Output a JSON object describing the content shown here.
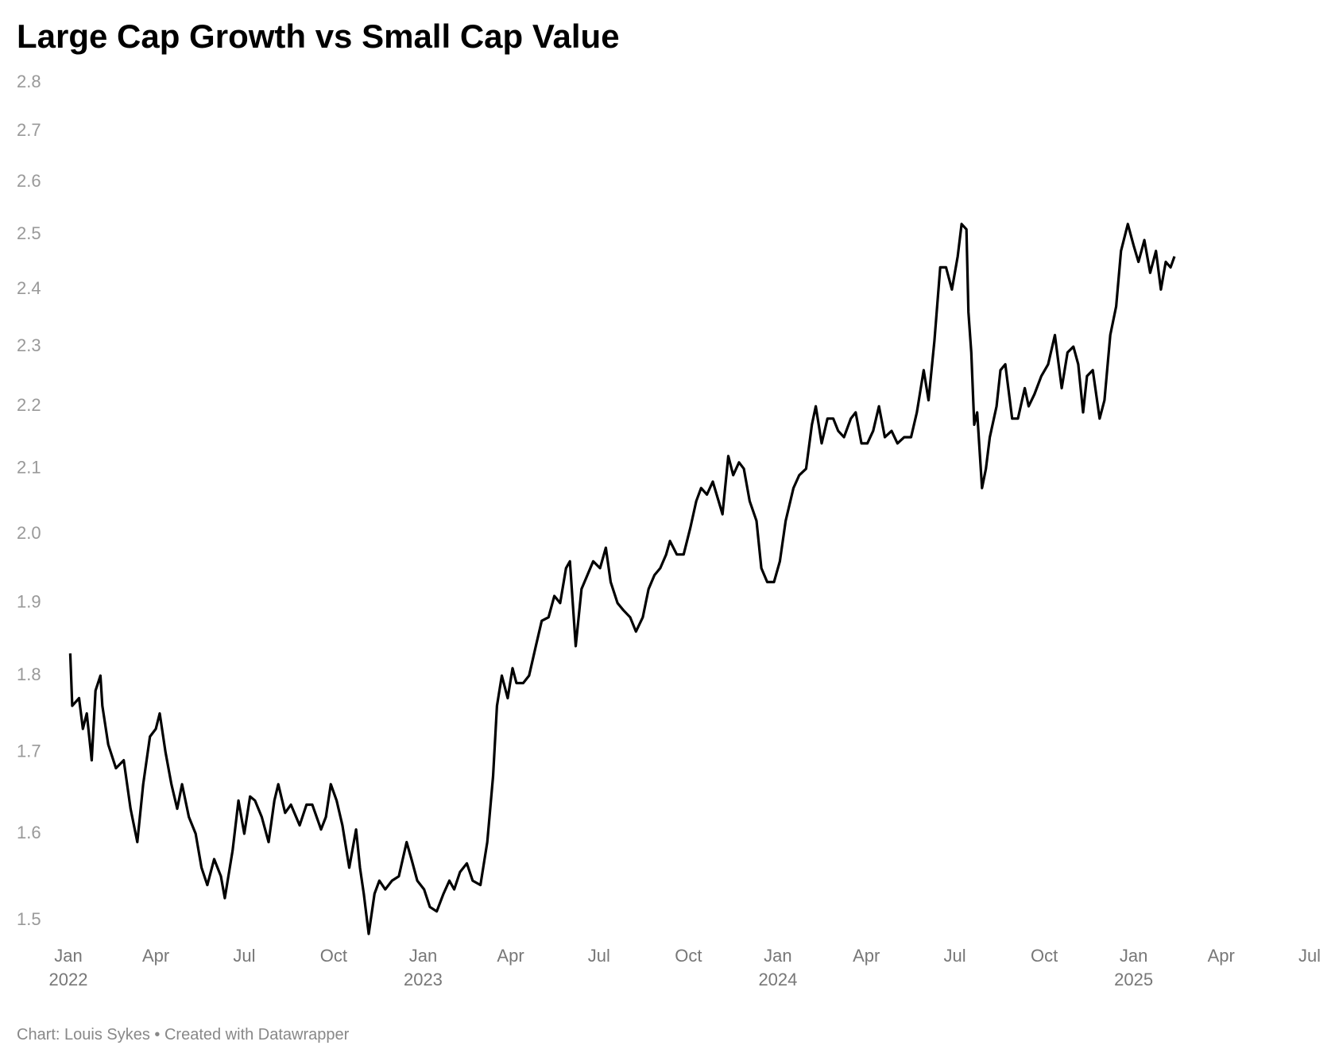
{
  "chart_data": {
    "type": "line",
    "title": "Large Cap Growth vs Small Cap Value",
    "footer": "Chart: Louis Sykes • Created with Datawrapper",
    "color": "#000000",
    "log_scale": true,
    "grid": false,
    "xlim": [
      "2022-01-01",
      "2025-07-01"
    ],
    "xticks": [
      {
        "value": "2022-01-01",
        "label": "Jan 2022"
      },
      {
        "value": "2022-04-01",
        "label": "Apr"
      },
      {
        "value": "2022-07-01",
        "label": "Jul"
      },
      {
        "value": "2022-10-01",
        "label": "Oct"
      },
      {
        "value": "2023-01-01",
        "label": "Jan 2023"
      },
      {
        "value": "2023-04-01",
        "label": "Apr"
      },
      {
        "value": "2023-07-01",
        "label": "Jul"
      },
      {
        "value": "2023-10-01",
        "label": "Oct"
      },
      {
        "value": "2024-01-01",
        "label": "Jan 2024"
      },
      {
        "value": "2024-04-01",
        "label": "Apr"
      },
      {
        "value": "2024-07-01",
        "label": "Jul"
      },
      {
        "value": "2024-10-01",
        "label": "Oct"
      },
      {
        "value": "2025-01-01",
        "label": "Jan 2025"
      },
      {
        "value": "2025-04-01",
        "label": "Apr"
      },
      {
        "value": "2025-07-01",
        "label": "Jul"
      }
    ],
    "ylim": [
      1.5,
      2.8
    ],
    "yticks": [
      {
        "value": 1.5,
        "label": "1.5"
      },
      {
        "value": 1.6,
        "label": "1.6"
      },
      {
        "value": 1.7,
        "label": "1.7"
      },
      {
        "value": 1.8,
        "label": "1.8"
      },
      {
        "value": 1.9,
        "label": "1.9"
      },
      {
        "value": 2.0,
        "label": "2.0"
      },
      {
        "value": 2.1,
        "label": "2.1"
      },
      {
        "value": 2.2,
        "label": "2.2"
      },
      {
        "value": 2.3,
        "label": "2.3"
      },
      {
        "value": 2.4,
        "label": "2.4"
      },
      {
        "value": 2.5,
        "label": "2.5"
      },
      {
        "value": 2.6,
        "label": "2.6"
      },
      {
        "value": 2.7,
        "label": "2.7"
      },
      {
        "value": 2.8,
        "label": "2.8"
      }
    ],
    "x": [
      "2022-01-03",
      "2022-01-05",
      "2022-01-12",
      "2022-01-16",
      "2022-01-20",
      "2022-01-25",
      "2022-01-29",
      "2022-02-03",
      "2022-02-05",
      "2022-02-11",
      "2022-02-19",
      "2022-02-27",
      "2022-03-06",
      "2022-03-13",
      "2022-03-19",
      "2022-03-26",
      "2022-04-01",
      "2022-04-05",
      "2022-04-11",
      "2022-04-17",
      "2022-04-23",
      "2022-04-28",
      "2022-05-05",
      "2022-05-12",
      "2022-05-18",
      "2022-05-24",
      "2022-05-31",
      "2022-06-07",
      "2022-06-11",
      "2022-06-19",
      "2022-06-25",
      "2022-07-01",
      "2022-07-07",
      "2022-07-12",
      "2022-07-19",
      "2022-07-26",
      "2022-08-01",
      "2022-08-05",
      "2022-08-12",
      "2022-08-18",
      "2022-08-27",
      "2022-09-03",
      "2022-09-09",
      "2022-09-18",
      "2022-09-23",
      "2022-09-28",
      "2022-10-04",
      "2022-10-10",
      "2022-10-17",
      "2022-10-24",
      "2022-10-28",
      "2022-11-01",
      "2022-11-06",
      "2022-11-12",
      "2022-11-17",
      "2022-11-23",
      "2022-11-30",
      "2022-12-07",
      "2022-12-15",
      "2022-12-20",
      "2022-12-26",
      "2023-01-02",
      "2023-01-08",
      "2023-01-15",
      "2023-01-22",
      "2023-01-28",
      "2023-02-02",
      "2023-02-08",
      "2023-02-15",
      "2023-02-21",
      "2023-03-01",
      "2023-03-08",
      "2023-03-14",
      "2023-03-18",
      "2023-03-23",
      "2023-03-29",
      "2023-04-03",
      "2023-04-07",
      "2023-04-14",
      "2023-04-20",
      "2023-04-27",
      "2023-05-03",
      "2023-05-10",
      "2023-05-16",
      "2023-05-22",
      "2023-05-28",
      "2023-06-01",
      "2023-06-07",
      "2023-06-13",
      "2023-06-19",
      "2023-06-25",
      "2023-07-02",
      "2023-07-08",
      "2023-07-13",
      "2023-07-20",
      "2023-07-26",
      "2023-08-02",
      "2023-08-08",
      "2023-08-15",
      "2023-08-21",
      "2023-08-27",
      "2023-09-02",
      "2023-09-08",
      "2023-09-12",
      "2023-09-19",
      "2023-09-26",
      "2023-10-03",
      "2023-10-09",
      "2023-10-14",
      "2023-10-20",
      "2023-10-26",
      "2023-11-01",
      "2023-11-05",
      "2023-11-11",
      "2023-11-16",
      "2023-11-22",
      "2023-11-27",
      "2023-12-03",
      "2023-12-10",
      "2023-12-15",
      "2023-12-21",
      "2023-12-28",
      "2024-01-03",
      "2024-01-09",
      "2024-01-17",
      "2024-01-23",
      "2024-01-30",
      "2024-02-05",
      "2024-02-09",
      "2024-02-15",
      "2024-02-21",
      "2024-02-27",
      "2024-03-03",
      "2024-03-09",
      "2024-03-16",
      "2024-03-21",
      "2024-03-27",
      "2024-04-02",
      "2024-04-08",
      "2024-04-14",
      "2024-04-20",
      "2024-04-27",
      "2024-05-03",
      "2024-05-10",
      "2024-05-17",
      "2024-05-23",
      "2024-05-30",
      "2024-06-04",
      "2024-06-10",
      "2024-06-16",
      "2024-06-22",
      "2024-06-28",
      "2024-07-04",
      "2024-07-08",
      "2024-07-13",
      "2024-07-15",
      "2024-07-18",
      "2024-07-21",
      "2024-07-24",
      "2024-07-29",
      "2024-08-02",
      "2024-08-06",
      "2024-08-13",
      "2024-08-17",
      "2024-08-22",
      "2024-08-29",
      "2024-09-04",
      "2024-09-11",
      "2024-09-15",
      "2024-09-21",
      "2024-09-28",
      "2024-10-05",
      "2024-10-12",
      "2024-10-19",
      "2024-10-25",
      "2024-10-31",
      "2024-11-05",
      "2024-11-10",
      "2024-11-14",
      "2024-11-20",
      "2024-11-27",
      "2024-12-02",
      "2024-12-08",
      "2024-12-14",
      "2024-12-19",
      "2024-12-26",
      "2025-01-01",
      "2025-01-06",
      "2025-01-12",
      "2025-01-18",
      "2025-01-24",
      "2025-01-29",
      "2025-02-03",
      "2025-02-08",
      "2025-02-12"
    ],
    "values": [
      1.83,
      1.76,
      1.77,
      1.73,
      1.75,
      1.69,
      1.78,
      1.8,
      1.76,
      1.71,
      1.68,
      1.69,
      1.63,
      1.59,
      1.66,
      1.72,
      1.73,
      1.75,
      1.7,
      1.66,
      1.63,
      1.66,
      1.62,
      1.6,
      1.56,
      1.54,
      1.57,
      1.55,
      1.525,
      1.58,
      1.64,
      1.6,
      1.645,
      1.64,
      1.62,
      1.59,
      1.64,
      1.66,
      1.625,
      1.635,
      1.61,
      1.635,
      1.635,
      1.605,
      1.62,
      1.66,
      1.64,
      1.61,
      1.56,
      1.605,
      1.56,
      1.53,
      1.485,
      1.53,
      1.545,
      1.535,
      1.545,
      1.55,
      1.59,
      1.57,
      1.545,
      1.535,
      1.515,
      1.51,
      1.53,
      1.545,
      1.535,
      1.555,
      1.565,
      1.545,
      1.54,
      1.59,
      1.67,
      1.76,
      1.8,
      1.77,
      1.81,
      1.79,
      1.79,
      1.8,
      1.84,
      1.875,
      1.88,
      1.91,
      1.9,
      1.95,
      1.96,
      1.84,
      1.92,
      1.94,
      1.96,
      1.95,
      1.98,
      1.93,
      1.9,
      1.89,
      1.88,
      1.86,
      1.88,
      1.92,
      1.94,
      1.95,
      1.97,
      1.99,
      1.97,
      1.97,
      2.01,
      2.05,
      2.07,
      2.06,
      2.08,
      2.05,
      2.03,
      2.12,
      2.09,
      2.11,
      2.1,
      2.05,
      2.02,
      1.95,
      1.93,
      1.93,
      1.96,
      2.02,
      2.07,
      2.09,
      2.1,
      2.17,
      2.2,
      2.14,
      2.18,
      2.18,
      2.16,
      2.15,
      2.18,
      2.19,
      2.14,
      2.14,
      2.16,
      2.2,
      2.15,
      2.16,
      2.14,
      2.15,
      2.15,
      2.19,
      2.26,
      2.21,
      2.31,
      2.44,
      2.44,
      2.4,
      2.46,
      2.52,
      2.51,
      2.36,
      2.29,
      2.17,
      2.19,
      2.07,
      2.1,
      2.15,
      2.2,
      2.26,
      2.27,
      2.18,
      2.18,
      2.23,
      2.2,
      2.22,
      2.25,
      2.27,
      2.32,
      2.23,
      2.29,
      2.3,
      2.27,
      2.19,
      2.25,
      2.26,
      2.18,
      2.21,
      2.32,
      2.37,
      2.47,
      2.52,
      2.48,
      2.45,
      2.49,
      2.43,
      2.47,
      2.4,
      2.45,
      2.44,
      2.46
    ]
  }
}
